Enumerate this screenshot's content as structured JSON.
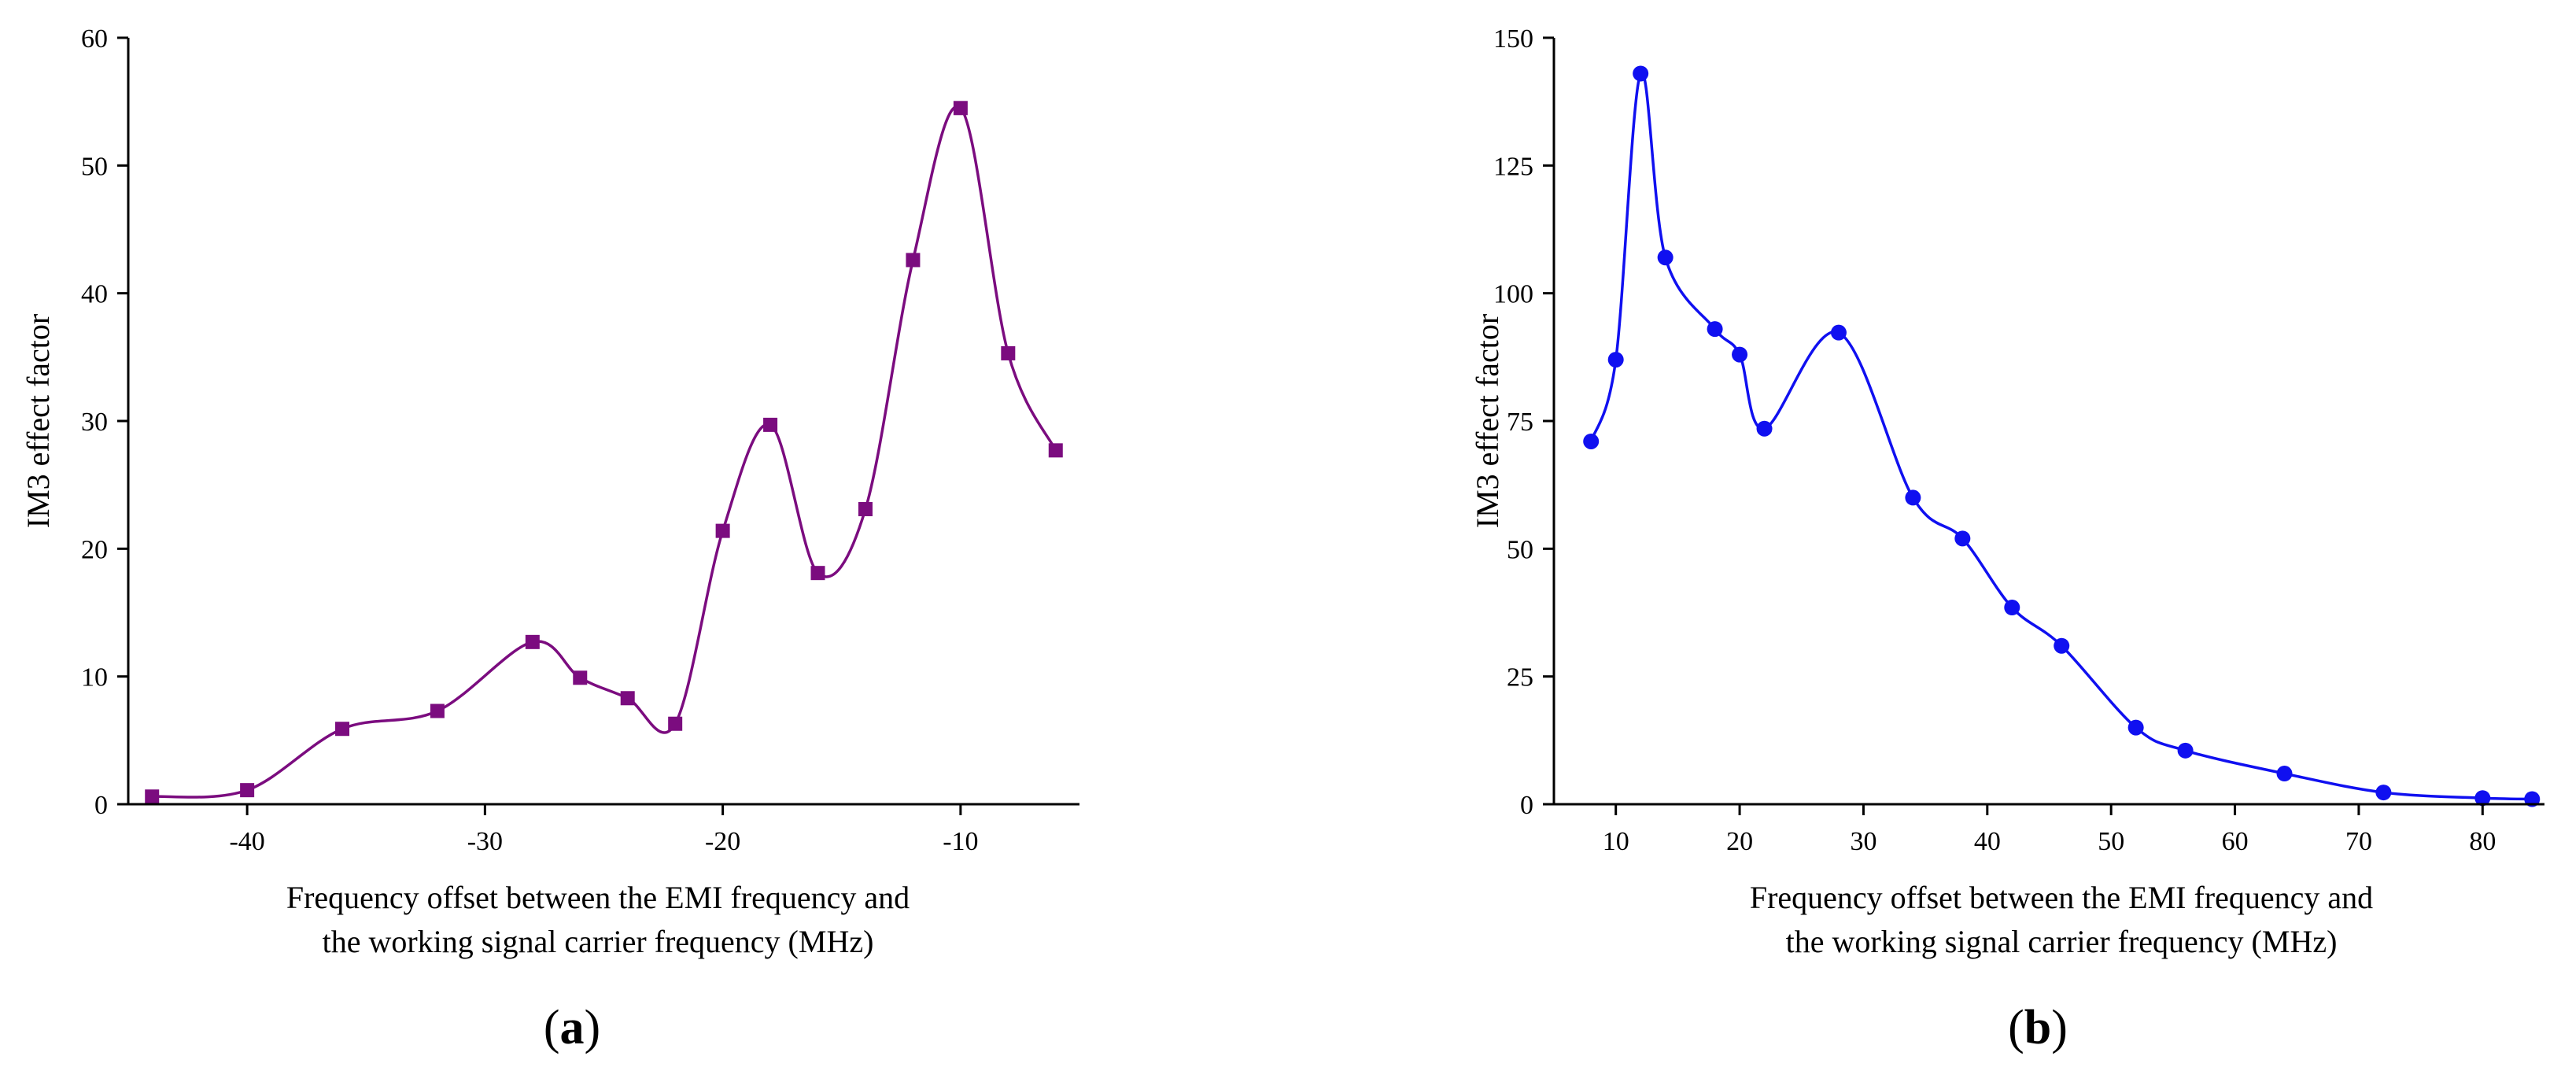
{
  "figure": {
    "panels": [
      {
        "label_open": "(",
        "label_letter": "a",
        "label_close": ")"
      },
      {
        "label_open": "(",
        "label_letter": "b",
        "label_close": ")"
      }
    ]
  },
  "chart_data": [
    {
      "type": "line",
      "panel": "a",
      "title": "",
      "xlabel_line1": "Frequency offset between the EMI frequency and",
      "xlabel_line2": "the working signal carrier frequency (MHz)",
      "ylabel": "IM3 effect factor",
      "xlim": [
        -45,
        -5
      ],
      "ylim": [
        0,
        60
      ],
      "xticks": [
        -40,
        -30,
        -20,
        -10
      ],
      "yticks": [
        0,
        10,
        20,
        30,
        40,
        50,
        60
      ],
      "grid": false,
      "marker": "square",
      "color": "#7b0c7f",
      "series": [
        {
          "name": "IM3 effect factor",
          "x": [
            -44,
            -40,
            -36,
            -32,
            -28,
            -26,
            -24,
            -22,
            -20,
            -18,
            -16,
            -14,
            -12,
            -10,
            -8,
            -6
          ],
          "y": [
            0.6,
            1.1,
            5.9,
            7.3,
            12.7,
            9.9,
            8.3,
            6.3,
            21.4,
            29.7,
            18.1,
            23.1,
            42.6,
            54.5,
            35.3,
            27.7
          ]
        }
      ]
    },
    {
      "type": "line",
      "panel": "b",
      "title": "",
      "xlabel_line1": "Frequency offset between the EMI frequency and",
      "xlabel_line2": "the working signal carrier frequency (MHz)",
      "ylabel": "IM3 effect factor",
      "xlim": [
        5,
        85
      ],
      "ylim": [
        0,
        150
      ],
      "xticks": [
        10,
        20,
        30,
        40,
        50,
        60,
        70,
        80
      ],
      "yticks": [
        0,
        25,
        50,
        75,
        100,
        125,
        150
      ],
      "grid": false,
      "marker": "circle",
      "color": "#1010f0",
      "series": [
        {
          "name": "IM3 effect factor",
          "x": [
            8,
            10,
            12,
            14,
            18,
            20,
            22,
            28,
            34,
            38,
            42,
            46,
            52,
            56,
            64,
            72,
            80,
            84
          ],
          "y": [
            71,
            87,
            143,
            107,
            93,
            88,
            73.5,
            92.3,
            60,
            52,
            38.5,
            31,
            15,
            10.5,
            6,
            2.3,
            1.2,
            1
          ]
        }
      ]
    }
  ]
}
